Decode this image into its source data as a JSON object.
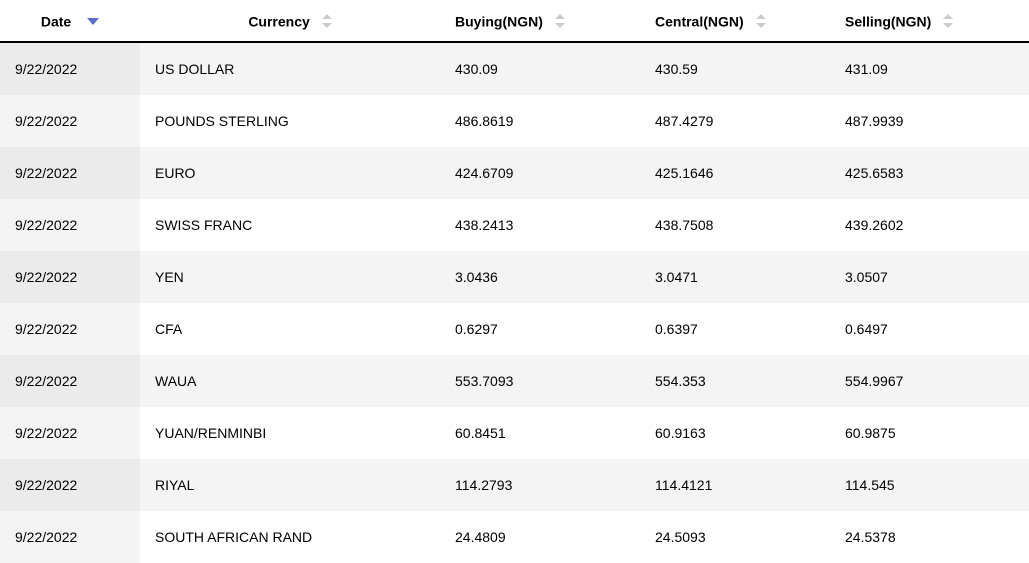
{
  "table": {
    "columns": [
      {
        "key": "date",
        "label": "Date",
        "sort": "active-down"
      },
      {
        "key": "currency",
        "label": "Currency",
        "sort": "both"
      },
      {
        "key": "buying",
        "label": "Buying(NGN)",
        "sort": "both"
      },
      {
        "key": "central",
        "label": "Central(NGN)",
        "sort": "both"
      },
      {
        "key": "selling",
        "label": "Selling(NGN)",
        "sort": "both"
      }
    ],
    "rows": [
      {
        "date": "9/22/2022",
        "currency": "US DOLLAR",
        "buying": "430.09",
        "central": "430.59",
        "selling": "431.09"
      },
      {
        "date": "9/22/2022",
        "currency": "POUNDS STERLING",
        "buying": "486.8619",
        "central": "487.4279",
        "selling": "487.9939"
      },
      {
        "date": "9/22/2022",
        "currency": "EURO",
        "buying": "424.6709",
        "central": "425.1646",
        "selling": "425.6583"
      },
      {
        "date": "9/22/2022",
        "currency": "SWISS FRANC",
        "buying": "438.2413",
        "central": "438.7508",
        "selling": "439.2602"
      },
      {
        "date": "9/22/2022",
        "currency": "YEN",
        "buying": "3.0436",
        "central": "3.0471",
        "selling": "3.0507"
      },
      {
        "date": "9/22/2022",
        "currency": "CFA",
        "buying": "0.6297",
        "central": "0.6397",
        "selling": "0.6497"
      },
      {
        "date": "9/22/2022",
        "currency": "WAUA",
        "buying": "553.7093",
        "central": "554.353",
        "selling": "554.9967"
      },
      {
        "date": "9/22/2022",
        "currency": "YUAN/RENMINBI",
        "buying": "60.8451",
        "central": "60.9163",
        "selling": "60.9875"
      },
      {
        "date": "9/22/2022",
        "currency": "RIYAL",
        "buying": "114.2793",
        "central": "114.4121",
        "selling": "114.545"
      },
      {
        "date": "9/22/2022",
        "currency": "SOUTH AFRICAN RAND",
        "buying": "24.4809",
        "central": "24.5093",
        "selling": "24.5378"
      }
    ]
  },
  "colors": {
    "header_border": "#000000",
    "row_odd_bg": "#f4f4f4",
    "row_even_bg": "#ffffff",
    "first_col_odd_bg": "#ebebeb",
    "first_col_even_bg": "#f4f4f4",
    "sort_arrow_inactive": "#cccccc",
    "sort_arrow_active": "#5b6dcd"
  }
}
